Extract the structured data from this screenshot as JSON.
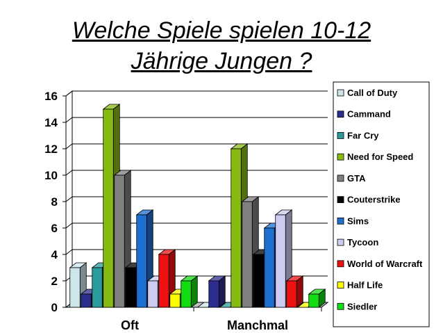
{
  "slide": {
    "title_line1": "Welche Spiele spielen 10-12",
    "title_line2": "Jährige Jungen ?"
  },
  "chart_data": {
    "type": "bar",
    "title": "Welche Spiele spielen 10-12 Jährige Jungen ?",
    "categories": [
      "Oft",
      "Manchmal"
    ],
    "ylim": [
      0,
      16
    ],
    "yticks": [
      0,
      2,
      4,
      6,
      8,
      10,
      12,
      14,
      16
    ],
    "grid": true,
    "style": "3d-clustered-bar",
    "legend_position": "right",
    "series": [
      {
        "name": "Call of Duty",
        "color": "#cce6ec",
        "values": [
          3,
          0
        ]
      },
      {
        "name": "Cammand",
        "color": "#2d2d8f",
        "values": [
          1,
          2
        ]
      },
      {
        "name": "Far Cry",
        "color": "#2a9b9b",
        "values": [
          3,
          0
        ]
      },
      {
        "name": "Need for Speed",
        "color": "#88bb12",
        "values": [
          15,
          12
        ]
      },
      {
        "name": "GTA",
        "color": "#7f7f7f",
        "values": [
          10,
          8
        ]
      },
      {
        "name": "Couterstrike",
        "color": "#000000",
        "values": [
          3,
          4
        ]
      },
      {
        "name": "Sims",
        "color": "#1e6fd0",
        "values": [
          7,
          6
        ]
      },
      {
        "name": "Tycoon",
        "color": "#ccccf2",
        "values": [
          2,
          7
        ]
      },
      {
        "name": "World of Warcraft",
        "color": "#ee1111",
        "values": [
          4,
          2
        ]
      },
      {
        "name": "Half Life",
        "color": "#ffff00",
        "values": [
          1,
          0
        ]
      },
      {
        "name": "Siedler",
        "color": "#11dd11",
        "values": [
          2,
          1
        ]
      }
    ]
  }
}
